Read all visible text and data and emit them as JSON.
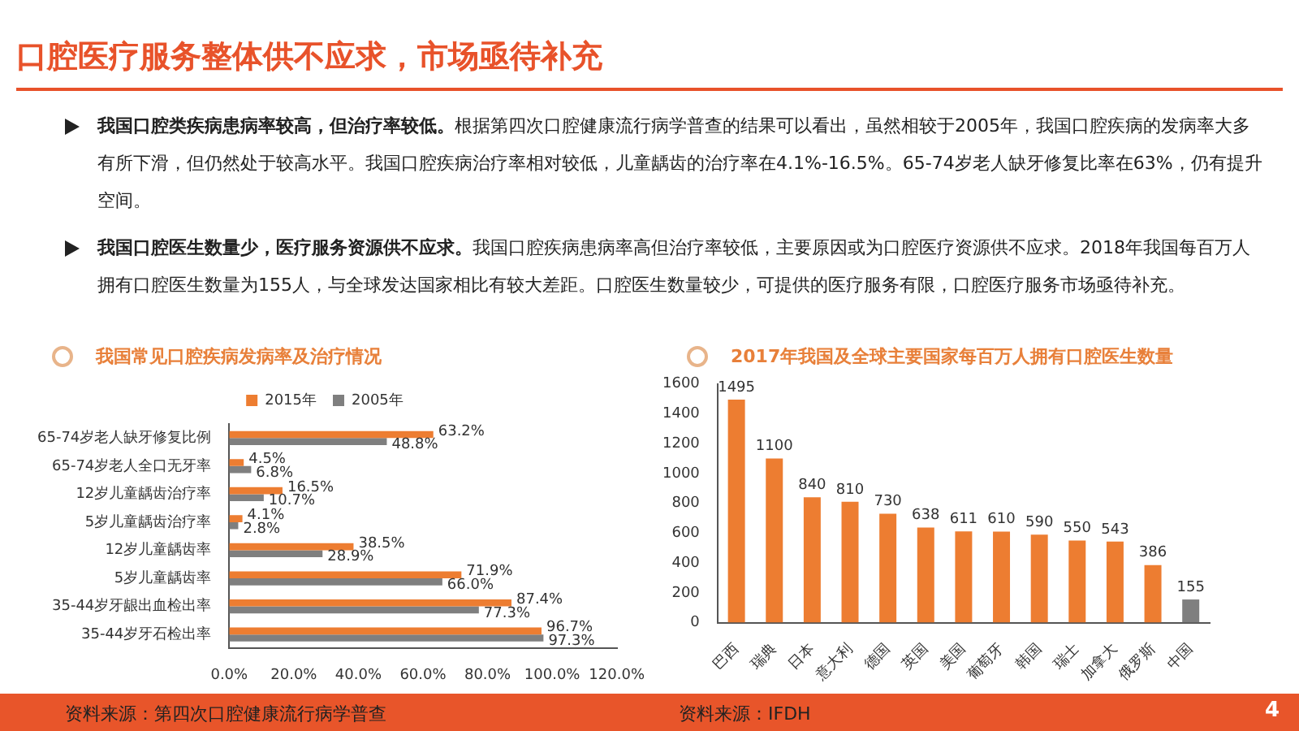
{
  "chart_data": [
    {
      "type": "other",
      "title": "口腔医疗服务整体供不应求，市场亟待补充",
      "annotations": [
        "我国口腔类疾病患病率较高，但治疗率较低。",
        "根据第四次口腔健康流行病学普查的结果可以看出，虽然相较于2005年，我国口腔疾病的发病率大多有所下滑，但仍然处于较高水平。我国口腔疾病治疗率相对较低，儿童龋齿的治疗率在4.1%-16.5%。65-74岁老人缺牙修复比率在63%，仍有提升空间。",
        "我国口腔医生数量少，医疗服务资源供不应求。",
        "我国口腔疾病患病率高但治疗率较低，主要原因或为口腔医疗资源供不应求。2018年我国每百万人拥有口腔医生数量为155人，与全球发达国家相比有较大差距。口腔医生数量较少，可提供的医疗服务有限，口腔医疗服务市场亟待补充。",
        "4"
      ]
    },
    {
      "type": "bar",
      "orientation": "horizontal",
      "title": "我国常见口腔疾病发病率及治疗情况",
      "categories": [
        "65-74岁老人缺牙修复比例",
        "65-74岁老人全口无牙率",
        "12岁儿童龋齿治疗率",
        "5岁儿童龋齿治疗率",
        "12岁儿童龋齿率",
        "5岁儿童龋齿率",
        "35-44岁牙龈出血检出率",
        "35-44岁牙石检出率"
      ],
      "series": [
        {
          "name": "2015年",
          "color": "#ed7d31",
          "values": [
            63.2,
            4.5,
            16.5,
            4.1,
            38.5,
            71.9,
            87.4,
            96.7
          ],
          "value_labels": [
            "63.2%",
            "4.5%",
            "16.5%",
            "4.1%",
            "38.5%",
            "71.9%",
            "87.4%",
            "96.7%"
          ]
        },
        {
          "name": "2005年",
          "color": "#7f7f7f",
          "values": [
            48.8,
            6.8,
            10.7,
            2.8,
            28.9,
            66.0,
            77.3,
            97.3
          ],
          "value_labels": [
            "48.8%",
            "6.8%",
            "10.7%",
            "2.8%",
            "28.9%",
            "66.0%",
            "77.3%",
            "97.3%"
          ]
        }
      ],
      "xlim": [
        0,
        120
      ],
      "xticks": [
        {
          "value": 0,
          "label": "0.0%"
        },
        {
          "value": 20,
          "label": "20.0%"
        },
        {
          "value": 40,
          "label": "40.0%"
        },
        {
          "value": 60,
          "label": "60.0%"
        },
        {
          "value": 80,
          "label": "80.0%"
        },
        {
          "value": 100,
          "label": "100.0%"
        },
        {
          "value": 120,
          "label": "120.0%"
        }
      ],
      "legend": "top",
      "grid": false,
      "annotations": [
        "资料来源：第四次口腔健康流行病学普查"
      ]
    },
    {
      "type": "bar",
      "title": "2017年我国及全球主要国家每百万人拥有口腔医生数量",
      "categories": [
        "巴西",
        "瑞典",
        "日本",
        "意大利",
        "德国",
        "英国",
        "美国",
        "葡萄牙",
        "韩国",
        "瑞士",
        "加拿大",
        "俄罗斯",
        "中国"
      ],
      "values": [
        1495,
        1100,
        840,
        810,
        730,
        638,
        611,
        610,
        590,
        550,
        543,
        386,
        155
      ],
      "colors": [
        "#ed7d31",
        "#ed7d31",
        "#ed7d31",
        "#ed7d31",
        "#ed7d31",
        "#ed7d31",
        "#ed7d31",
        "#ed7d31",
        "#ed7d31",
        "#ed7d31",
        "#ed7d31",
        "#ed7d31",
        "#7f7f7f"
      ],
      "ylim": [
        0,
        1600
      ],
      "yticks": [
        0,
        200,
        400,
        600,
        800,
        1000,
        1200,
        1400,
        1600
      ],
      "data_labels": true,
      "grid": false,
      "legend": false,
      "annotations": [
        "资料来源：IFDH"
      ]
    }
  ]
}
